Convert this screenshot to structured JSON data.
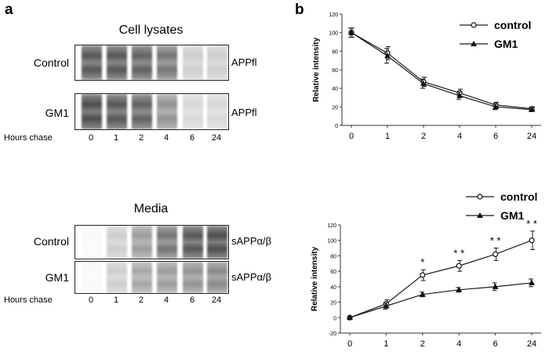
{
  "panel_a": {
    "letter": "a",
    "hours_label": "Hours chase",
    "lanes": [
      "0",
      "1",
      "2",
      "4",
      "6",
      "24"
    ],
    "cell_lysates": {
      "title": "Cell lysates",
      "rows": [
        {
          "label": "Control",
          "band": "APPfl",
          "intensity": [
            0.85,
            0.85,
            0.8,
            0.7,
            0.25,
            0.25
          ]
        },
        {
          "label": "GM1",
          "band": "APPfl",
          "intensity": [
            0.9,
            0.85,
            0.8,
            0.55,
            0.2,
            0.2
          ]
        }
      ]
    },
    "media": {
      "title": "Media",
      "rows": [
        {
          "label": "Control",
          "band": "sAPPα/β",
          "intensity": [
            0.03,
            0.25,
            0.5,
            0.7,
            0.85,
            0.9
          ]
        },
        {
          "label": "GM1",
          "band": "sAPPα/β",
          "intensity": [
            0.03,
            0.25,
            0.45,
            0.5,
            0.55,
            0.6
          ]
        }
      ]
    }
  },
  "panel_b": {
    "letter": "b",
    "colors": {
      "line": "#1a1a1a",
      "axis": "#333333"
    },
    "chart_data": [
      {
        "type": "line",
        "x_categories": [
          "0",
          "1",
          "2",
          "4",
          "6",
          "24"
        ],
        "ylabel": "Relative intensity",
        "ylim": [
          0,
          120
        ],
        "yticks": [
          0,
          20,
          40,
          60,
          80,
          100,
          120
        ],
        "legend_placement": "top-right",
        "series": [
          {
            "name": "control",
            "marker": "open-circle",
            "values": [
              100,
              78,
              47,
              35,
              22,
              18
            ],
            "errors": [
              5,
              7,
              5,
              4,
              3,
              2
            ]
          },
          {
            "name": "GM1",
            "marker": "filled-triangle",
            "values": [
              100,
              75,
              45,
              32,
              20,
              17
            ],
            "errors": [
              5,
              8,
              5,
              4,
              3,
              2
            ]
          }
        ],
        "annotations": []
      },
      {
        "type": "line",
        "x_categories": [
          "0",
          "1",
          "2",
          "4",
          "6",
          "24"
        ],
        "ylabel": "Relative intensity",
        "ylim": [
          -20,
          120
        ],
        "yticks": [
          -20,
          0,
          20,
          40,
          60,
          80,
          100,
          120
        ],
        "legend_placement": "top-right",
        "series": [
          {
            "name": "control",
            "marker": "open-circle",
            "values": [
              0,
              18,
              55,
              67,
              82,
              100
            ],
            "errors": [
              0,
              5,
              7,
              7,
              8,
              12
            ]
          },
          {
            "name": "GM1",
            "marker": "filled-triangle",
            "values": [
              0,
              15,
              30,
              36,
              40,
              45
            ],
            "errors": [
              0,
              4,
              3,
              3,
              5,
              5
            ]
          }
        ],
        "annotations": [
          {
            "x": "2",
            "text": "*"
          },
          {
            "x": "4",
            "text": "* *"
          },
          {
            "x": "6",
            "text": "* *"
          },
          {
            "x": "24",
            "text": "* *"
          }
        ]
      }
    ]
  }
}
